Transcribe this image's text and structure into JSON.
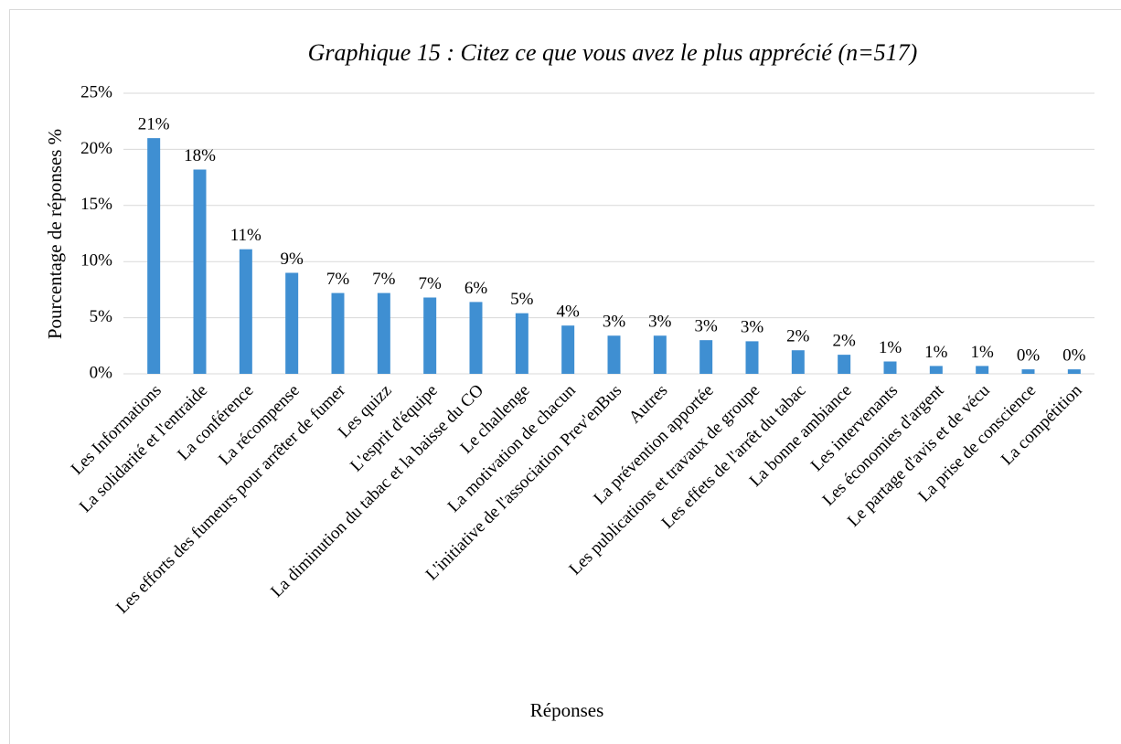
{
  "chart_data": {
    "type": "bar",
    "title": "Graphique 15 : Citez ce que vous avez le plus apprécié (n=517)",
    "x_label": "Réponses",
    "y_label": "Pourcentage de réponses %",
    "categories": [
      "Les Informations",
      "La solidarité et l'entraide",
      "La conférence",
      "La récompense",
      "Les efforts des fumeurs pour arrêter de fumer",
      "Les quizz",
      "L'esprit d'équipe",
      "La diminution du tabac et la baisse du CO",
      "Le challenge",
      "La motivation de chacun",
      "L'initiative de l'association Prev'enBus",
      "Autres",
      "La prévention apportée",
      "Les publications et travaux de groupe",
      "Les effets de l'arrêt du tabac",
      "La bonne ambiance",
      "Les intervenants",
      "Les économies d'argent",
      "Le partage d'avis et de vécu",
      "La prise de conscience",
      "La compétition"
    ],
    "values": [
      21.0,
      18.2,
      11.1,
      9.0,
      7.2,
      7.2,
      6.8,
      6.4,
      5.4,
      4.3,
      3.4,
      3.4,
      3.0,
      2.9,
      2.1,
      1.7,
      1.1,
      0.7,
      0.7,
      0.4,
      0.4
    ],
    "value_labels": [
      "21%",
      "18%",
      "11%",
      "9%",
      "7%",
      "7%",
      "7%",
      "6%",
      "5%",
      "4%",
      "3%",
      "3%",
      "3%",
      "3%",
      "2%",
      "2%",
      "1%",
      "1%",
      "1%",
      "0%",
      "0%"
    ],
    "color": "#3f8fd2",
    "ylim": [
      0,
      25
    ],
    "yticks": [
      {
        "value": 0,
        "label": "0%"
      },
      {
        "value": 5,
        "label": "5%"
      },
      {
        "value": 10,
        "label": "10%"
      },
      {
        "value": 15,
        "label": "15%"
      },
      {
        "value": 20,
        "label": "20%"
      },
      {
        "value": 25,
        "label": "25%"
      }
    ],
    "grid": true
  }
}
